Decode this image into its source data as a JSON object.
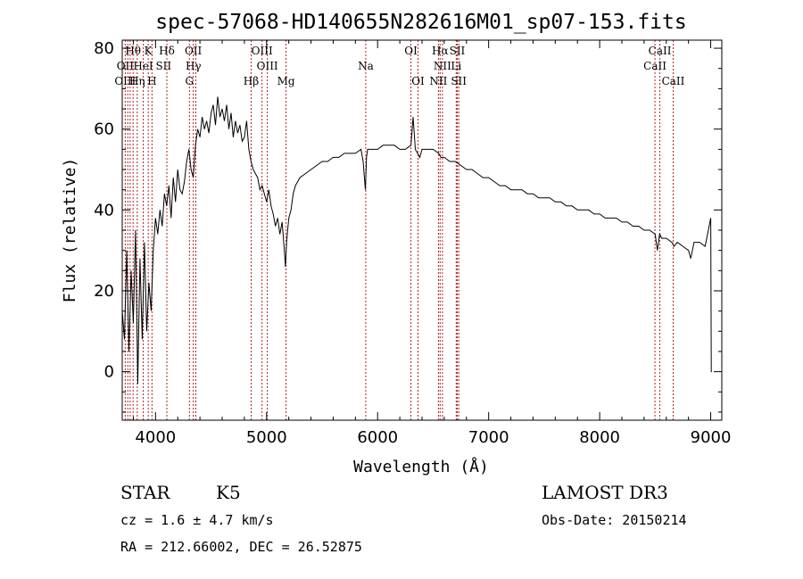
{
  "chart_data": {
    "type": "line",
    "title": "spec-57068-HD140655N282616M01_sp07-153.fits",
    "xlabel": "Wavelength (Å)",
    "ylabel": "Flux (relative)",
    "xlim": [
      3700,
      9100
    ],
    "ylim": [
      -12,
      82
    ],
    "xticks": [
      4000,
      5000,
      6000,
      7000,
      8000,
      9000
    ],
    "yticks": [
      0,
      20,
      40,
      60,
      80
    ],
    "series": [
      {
        "name": "flux",
        "x": [
          3700,
          3720,
          3740,
          3760,
          3780,
          3800,
          3820,
          3840,
          3860,
          3880,
          3900,
          3920,
          3940,
          3960,
          3980,
          4000,
          4020,
          4040,
          4060,
          4080,
          4100,
          4120,
          4140,
          4160,
          4180,
          4200,
          4220,
          4240,
          4260,
          4280,
          4300,
          4320,
          4340,
          4360,
          4380,
          4400,
          4420,
          4440,
          4460,
          4480,
          4500,
          4520,
          4540,
          4560,
          4580,
          4600,
          4620,
          4640,
          4660,
          4680,
          4700,
          4720,
          4740,
          4760,
          4780,
          4800,
          4820,
          4840,
          4860,
          4880,
          4900,
          4920,
          4940,
          4960,
          4980,
          5000,
          5020,
          5040,
          5060,
          5080,
          5100,
          5120,
          5140,
          5160,
          5170,
          5180,
          5190,
          5200,
          5220,
          5240,
          5260,
          5280,
          5300,
          5350,
          5400,
          5450,
          5500,
          5550,
          5600,
          5650,
          5700,
          5750,
          5800,
          5850,
          5870,
          5890,
          5900,
          5910,
          5930,
          5950,
          6000,
          6050,
          6100,
          6150,
          6200,
          6250,
          6300,
          6320,
          6340,
          6360,
          6380,
          6400,
          6450,
          6500,
          6550,
          6570,
          6600,
          6650,
          6700,
          6750,
          6800,
          6850,
          6900,
          6950,
          7000,
          7050,
          7100,
          7150,
          7200,
          7250,
          7300,
          7350,
          7400,
          7450,
          7500,
          7550,
          7600,
          7650,
          7700,
          7750,
          7800,
          7850,
          7900,
          7950,
          8000,
          8050,
          8100,
          8150,
          8200,
          8250,
          8300,
          8350,
          8400,
          8450,
          8500,
          8520,
          8540,
          8560,
          8600,
          8650,
          8670,
          8700,
          8750,
          8800,
          8820,
          8850,
          8900,
          8950,
          9000,
          9005,
          9010
        ],
        "y": [
          15,
          8,
          30,
          5,
          25,
          12,
          35,
          -3,
          28,
          8,
          32,
          10,
          22,
          15,
          30,
          38,
          34,
          40,
          36,
          44,
          41,
          46,
          38,
          48,
          42,
          50,
          45,
          44,
          47,
          52,
          55,
          50,
          48,
          56,
          60,
          58,
          63,
          60,
          62,
          59,
          64,
          66,
          61,
          68,
          63,
          65,
          62,
          66,
          60,
          64,
          58,
          62,
          59,
          61,
          57,
          58,
          62,
          55,
          52,
          50,
          49,
          48,
          45,
          46,
          44,
          42,
          45,
          41,
          39,
          36,
          38,
          34,
          37,
          30,
          26,
          32,
          35,
          38,
          40,
          44,
          46,
          47,
          48,
          49,
          50,
          51,
          52,
          52,
          53,
          53,
          54,
          54,
          54,
          55,
          52,
          45,
          53,
          55,
          55,
          55,
          55,
          56,
          56,
          56,
          55,
          55,
          56,
          63,
          55,
          54,
          53,
          55,
          55,
          55,
          54,
          53,
          53,
          52,
          52,
          51,
          50,
          50,
          49,
          48,
          48,
          47,
          46,
          46,
          45,
          45,
          45,
          44,
          44,
          43,
          43,
          43,
          42,
          42,
          41,
          41,
          40,
          40,
          40,
          39,
          39,
          38,
          38,
          38,
          37,
          37,
          36,
          36,
          35,
          35,
          34,
          30,
          34,
          33,
          33,
          32,
          31,
          32,
          31,
          30,
          28,
          32,
          32,
          31,
          38,
          0,
          0
        ]
      }
    ],
    "emission_lines": [
      {
        "label": "Hθ",
        "wl": 3798,
        "row": 0
      },
      {
        "label": "K",
        "wl": 3934,
        "row": 0
      },
      {
        "label": "Hδ",
        "wl": 4102,
        "row": 0
      },
      {
        "label": "OII",
        "wl": 4340,
        "row": 0
      },
      {
        "label": "OIII",
        "wl": 4959,
        "row": 0
      },
      {
        "label": "OI",
        "wl": 6300,
        "row": 0
      },
      {
        "label": "Hα",
        "wl": 6563,
        "row": 0
      },
      {
        "label": "SII",
        "wl": 6717,
        "row": 0
      },
      {
        "label": "CaII",
        "wl": 8542,
        "row": 0
      },
      {
        "label": "OII",
        "wl": 3727,
        "row": 1
      },
      {
        "label": "HeI",
        "wl": 3889,
        "row": 1
      },
      {
        "label": "SII",
        "wl": 4072,
        "row": 1
      },
      {
        "label": "Hγ",
        "wl": 4341,
        "row": 1
      },
      {
        "label": "OIII",
        "wl": 5007,
        "row": 1
      },
      {
        "label": "Na",
        "wl": 5893,
        "row": 1
      },
      {
        "label": "NII",
        "wl": 6584,
        "row": 1
      },
      {
        "label": "Li",
        "wl": 6708,
        "row": 1
      },
      {
        "label": "CaII",
        "wl": 8498,
        "row": 1
      },
      {
        "label": "OIII",
        "wl": 3727,
        "row": 2
      },
      {
        "label": "Hη",
        "wl": 3835,
        "row": 2
      },
      {
        "label": "H",
        "wl": 3968,
        "row": 2
      },
      {
        "label": "G",
        "wl": 4305,
        "row": 2
      },
      {
        "label": "Hβ",
        "wl": 4861,
        "row": 2
      },
      {
        "label": "Mg",
        "wl": 5175,
        "row": 2
      },
      {
        "label": "OI",
        "wl": 6364,
        "row": 2
      },
      {
        "label": "NII",
        "wl": 6548,
        "row": 2
      },
      {
        "label": "SII",
        "wl": 6731,
        "row": 2
      },
      {
        "label": "CaII",
        "wl": 8662,
        "row": 2
      }
    ],
    "vertical_marker_wavelengths": [
      3727,
      3750,
      3771,
      3798,
      3835,
      3889,
      3934,
      3968,
      4102,
      4305,
      4340,
      4363,
      4861,
      4959,
      5007,
      5175,
      5893,
      6300,
      6364,
      6548,
      6563,
      6584,
      6708,
      6717,
      6731,
      8498,
      8542,
      8662
    ]
  },
  "info": {
    "object_type": "STAR",
    "subclass": "K5",
    "survey": "LAMOST DR3",
    "cz": "cz = 1.6 ± 4.7 km/s",
    "obs_date": "Obs-Date: 20150214",
    "coords": "RA = 212.66002, DEC =  26.52875"
  },
  "colors": {
    "marker": "#b22222",
    "spectrum": "#000000",
    "axes": "#000000"
  }
}
